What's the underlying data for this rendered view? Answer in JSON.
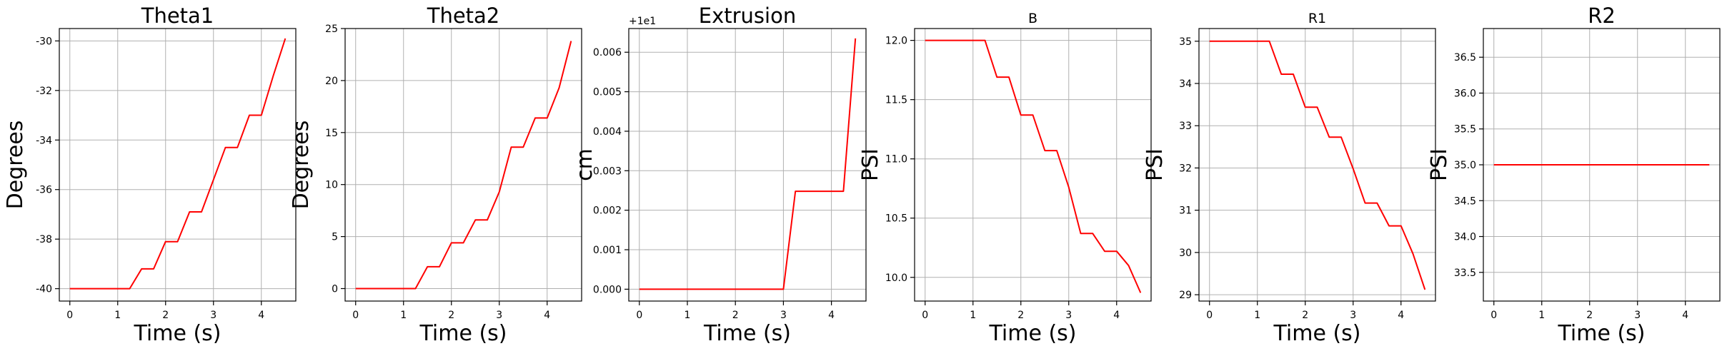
{
  "chart_data": [
    {
      "type": "line",
      "title": "Theta1",
      "xlabel": "Time (s)",
      "ylabel": "Degrees",
      "xlim": [
        -0.22,
        4.72
      ],
      "ylim": [
        -40.5,
        -29.5
      ],
      "xticks": [
        0,
        1,
        2,
        3,
        4
      ],
      "yticks": [
        -40,
        -38,
        -36,
        -34,
        -32,
        -30
      ],
      "grid": true,
      "series": [
        {
          "color": "#ff0000",
          "x": [
            0,
            0.25,
            0.5,
            0.75,
            1.0,
            1.25,
            1.5,
            1.75,
            2.0,
            2.25,
            2.5,
            2.75,
            3.0,
            3.25,
            3.5,
            3.75,
            4.0,
            4.25,
            4.5
          ],
          "y": [
            -40,
            -40,
            -40,
            -40,
            -40,
            -40,
            -39.2,
            -39.2,
            -38.1,
            -38.1,
            -36.9,
            -36.9,
            -35.6,
            -34.3,
            -34.3,
            -33.0,
            -33.0,
            -31.4,
            -29.9
          ]
        }
      ]
    },
    {
      "type": "line",
      "title": "Theta2",
      "xlabel": "Time (s)",
      "ylabel": "Degrees",
      "xlim": [
        -0.22,
        4.72
      ],
      "ylim": [
        -1.2,
        25
      ],
      "xticks": [
        0,
        1,
        2,
        3,
        4
      ],
      "yticks": [
        0,
        5,
        10,
        15,
        20,
        25
      ],
      "grid": true,
      "series": [
        {
          "color": "#ff0000",
          "x": [
            0,
            0.25,
            0.5,
            0.75,
            1.0,
            1.25,
            1.5,
            1.75,
            2.0,
            2.25,
            2.5,
            2.75,
            3.0,
            3.25,
            3.5,
            3.75,
            4.0,
            4.25,
            4.5
          ],
          "y": [
            0,
            0,
            0,
            0,
            0,
            0,
            2.1,
            2.1,
            4.4,
            4.4,
            6.6,
            6.6,
            9.3,
            13.6,
            13.6,
            16.4,
            16.4,
            19.3,
            23.8
          ]
        }
      ]
    },
    {
      "type": "line",
      "title": "Extrusion",
      "xlabel": "Time (s)",
      "ylabel": "cm",
      "offset_label": "+1e1",
      "xlim": [
        -0.22,
        4.72
      ],
      "ylim": [
        -0.0003,
        0.0066
      ],
      "xticks": [
        0,
        1,
        2,
        3,
        4
      ],
      "yticks": [
        0.0,
        0.001,
        0.002,
        0.003,
        0.004,
        0.005,
        0.006
      ],
      "ytick_labels": [
        "0.000",
        "0.001",
        "0.002",
        "0.003",
        "0.004",
        "0.005",
        "0.006"
      ],
      "grid": true,
      "series": [
        {
          "color": "#ff0000",
          "x": [
            0,
            0.25,
            0.5,
            0.75,
            1.0,
            1.25,
            1.5,
            1.75,
            2.0,
            2.25,
            2.5,
            2.75,
            3.0,
            3.25,
            3.5,
            3.75,
            4.0,
            4.25,
            4.5
          ],
          "y": [
            0,
            0,
            0,
            0,
            0,
            0,
            0,
            0,
            0,
            0,
            0,
            0,
            0,
            0.00248,
            0.00248,
            0.00248,
            0.00248,
            0.00248,
            0.00635
          ]
        }
      ]
    },
    {
      "type": "line",
      "title": "B",
      "xlabel": "Time (s)",
      "ylabel": "PSI",
      "xlim": [
        -0.22,
        4.72
      ],
      "ylim": [
        9.8,
        12.1
      ],
      "xticks": [
        0,
        1,
        2,
        3,
        4
      ],
      "yticks": [
        10.0,
        10.5,
        11.0,
        11.5,
        12.0
      ],
      "ytick_labels": [
        "10.0",
        "10.5",
        "11.0",
        "11.5",
        "12.0"
      ],
      "grid": true,
      "series": [
        {
          "color": "#ff0000",
          "x": [
            0,
            0.25,
            0.5,
            0.75,
            1.0,
            1.25,
            1.5,
            1.75,
            2.0,
            2.25,
            2.5,
            2.75,
            3.0,
            3.25,
            3.5,
            3.75,
            4.0,
            4.25,
            4.5
          ],
          "y": [
            12.0,
            12.0,
            12.0,
            12.0,
            12.0,
            12.0,
            11.69,
            11.69,
            11.37,
            11.37,
            11.07,
            11.07,
            10.76,
            10.37,
            10.37,
            10.22,
            10.22,
            10.1,
            9.87
          ]
        }
      ]
    },
    {
      "type": "line",
      "title": "R1",
      "xlabel": "Time (s)",
      "ylabel": "PSI",
      "xlim": [
        -0.22,
        4.72
      ],
      "ylim": [
        28.85,
        35.3
      ],
      "xticks": [
        0,
        1,
        2,
        3,
        4
      ],
      "yticks": [
        29,
        30,
        31,
        32,
        33,
        34,
        35
      ],
      "grid": true,
      "series": [
        {
          "color": "#ff0000",
          "x": [
            0,
            0.25,
            0.5,
            0.75,
            1.0,
            1.25,
            1.5,
            1.75,
            2.0,
            2.25,
            2.5,
            2.75,
            3.0,
            3.25,
            3.5,
            3.75,
            4.0,
            4.25,
            4.5
          ],
          "y": [
            35.0,
            35.0,
            35.0,
            35.0,
            35.0,
            35.0,
            34.22,
            34.22,
            33.44,
            33.44,
            32.73,
            32.73,
            31.98,
            31.17,
            31.17,
            30.63,
            30.63,
            29.97,
            29.12
          ]
        }
      ]
    },
    {
      "type": "line",
      "title": "R2",
      "xlabel": "Time (s)",
      "ylabel": "PSI",
      "xlim": [
        -0.22,
        4.72
      ],
      "ylim": [
        33.1,
        36.9
      ],
      "xticks": [
        0,
        1,
        2,
        3,
        4
      ],
      "yticks": [
        33.5,
        34.0,
        34.5,
        35.0,
        35.5,
        36.0,
        36.5
      ],
      "ytick_labels": [
        "33.5",
        "34.0",
        "34.5",
        "35.0",
        "35.5",
        "36.0",
        "36.5"
      ],
      "grid": true,
      "series": [
        {
          "color": "#ff0000",
          "x": [
            0,
            0.25,
            0.5,
            0.75,
            1.0,
            1.25,
            1.5,
            1.75,
            2.0,
            2.25,
            2.5,
            2.75,
            3.0,
            3.25,
            3.5,
            3.75,
            4.0,
            4.25,
            4.5
          ],
          "y": [
            35.0,
            35.0,
            35.0,
            35.0,
            35.0,
            35.0,
            35.0,
            35.0,
            35.0,
            35.0,
            35.0,
            35.0,
            35.0,
            35.0,
            35.0,
            35.0,
            35.0,
            35.0,
            35.0
          ]
        }
      ]
    }
  ]
}
